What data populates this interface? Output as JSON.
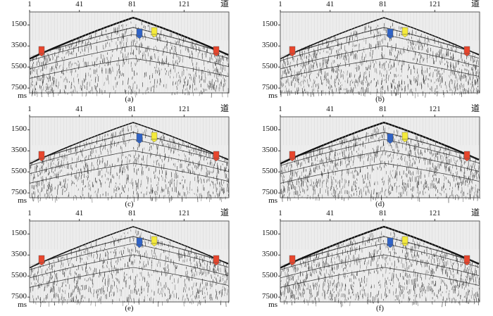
{
  "figure": {
    "trace_axis": {
      "ticks": [
        "1",
        "41",
        "81",
        "121"
      ],
      "unit": "道"
    },
    "time_axis": {
      "ticks": [
        "1500",
        "3500",
        "5500",
        "7500"
      ],
      "unit": "ms"
    },
    "panels": [
      {
        "id": "a",
        "caption": "(a)"
      },
      {
        "id": "b",
        "caption": "(b)"
      },
      {
        "id": "c",
        "caption": "(c)"
      },
      {
        "id": "d",
        "caption": "(d)"
      },
      {
        "id": "e",
        "caption": "(e)"
      },
      {
        "id": "f",
        "caption": "(f)"
      }
    ],
    "marker_colors": {
      "red": "#e8452c",
      "blue": "#2f63c7",
      "yellow": "#f4ea3a"
    },
    "marker_icons": [
      "red-arrow-icon",
      "blue-arrow-icon",
      "yellow-arrow-icon"
    ]
  }
}
